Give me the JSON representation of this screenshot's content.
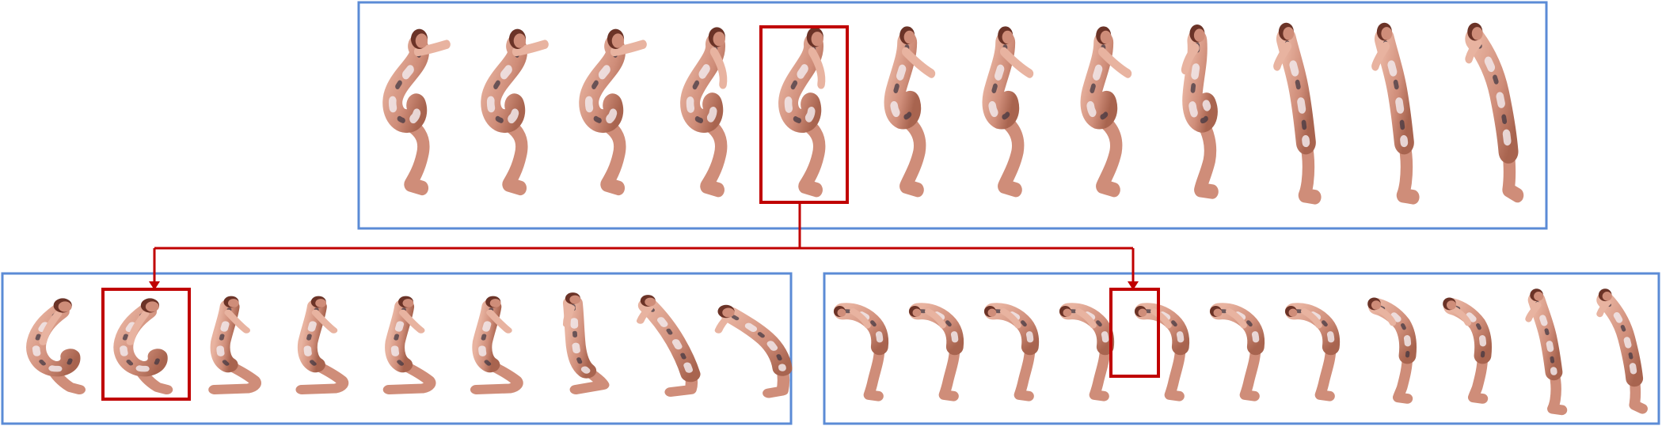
{
  "colors": {
    "panel_border": "#5b8bd6",
    "highlight": "#c00000",
    "skin_light": "#e8b3a0",
    "skin_mid": "#cf8d79",
    "skin_dark": "#a8644f",
    "hair": "#6b3327",
    "cloth_light": "#f1e7ea",
    "cloth_dark": "#3a3340",
    "shoe_teal": "#2b6b6f"
  },
  "top_panel": {
    "frames": [
      {
        "pose": "squat-deep"
      },
      {
        "pose": "squat-deep"
      },
      {
        "pose": "squat-deep"
      },
      {
        "pose": "squat-mid"
      },
      {
        "pose": "squat-mid",
        "highlighted": true
      },
      {
        "pose": "crouch"
      },
      {
        "pose": "crouch"
      },
      {
        "pose": "crouch"
      },
      {
        "pose": "rise"
      },
      {
        "pose": "stand-lean"
      },
      {
        "pose": "stand-lean"
      },
      {
        "pose": "stand-tall"
      }
    ]
  },
  "bottom_left_panel": {
    "frames": [
      {
        "pose": "curled"
      },
      {
        "pose": "curled",
        "highlighted": true
      },
      {
        "pose": "kneel"
      },
      {
        "pose": "kneel"
      },
      {
        "pose": "kneel"
      },
      {
        "pose": "kneel"
      },
      {
        "pose": "kneel-tall"
      },
      {
        "pose": "kneel-lean"
      },
      {
        "pose": "lie-forward"
      }
    ]
  },
  "bottom_right_panel": {
    "frames": [
      {
        "pose": "bend-over"
      },
      {
        "pose": "bend-over"
      },
      {
        "pose": "bend-over"
      },
      {
        "pose": "bend-over"
      },
      {
        "pose": "bend-over",
        "highlighted": true
      },
      {
        "pose": "bend-over"
      },
      {
        "pose": "bend-over"
      },
      {
        "pose": "bend-up"
      },
      {
        "pose": "bend-up"
      },
      {
        "pose": "stand-lean"
      },
      {
        "pose": "stand-tall"
      }
    ]
  }
}
